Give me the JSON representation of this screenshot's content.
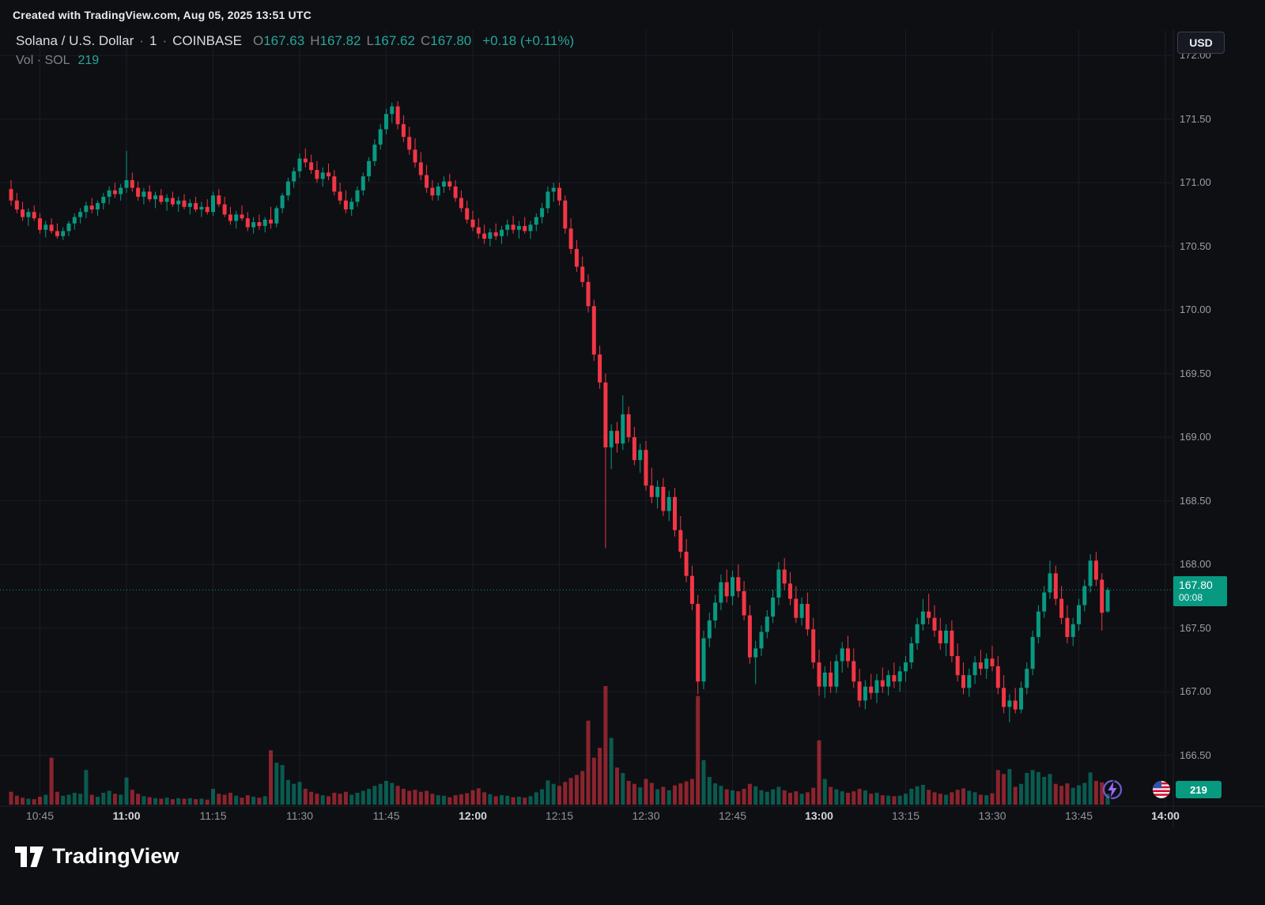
{
  "page": {
    "top_bar_text": "Created with TradingView.com, Aug 05, 2025 13:51 UTC"
  },
  "header": {
    "symbol_name": "Solana / U.S. Dollar",
    "separator": "·",
    "interval": "1",
    "exchange": "COINBASE",
    "ohlc": {
      "open_label": "O",
      "open": "167.63",
      "high_label": "H",
      "high": "167.82",
      "low_label": "L",
      "low": "167.62",
      "close_label": "C",
      "close": "167.80",
      "change": "+0.18 (+0.11%)"
    },
    "volume_row": {
      "label": "Vol · SOL",
      "value": "219"
    },
    "currency_button_label": "USD"
  },
  "badges": {
    "last_price": "167.80",
    "countdown": "00:08",
    "current_volume": "219"
  },
  "footer": {
    "logo_text": "TradingView"
  },
  "chart_data": {
    "type": "candlestick",
    "title": "Solana / U.S. Dollar, 1 minute, COINBASE",
    "interval_minutes": 1,
    "start_time": "10:40",
    "end_time": "13:50",
    "last_price": 167.8,
    "price_axis": {
      "min": 166.1,
      "max": 172.2,
      "tick_step": 0.5,
      "ticks": [
        172.0,
        171.5,
        171.0,
        170.5,
        170.0,
        169.5,
        169.0,
        168.5,
        168.0,
        167.5,
        167.0,
        166.5
      ]
    },
    "x_axis": {
      "ticks": [
        "10:45",
        "11:00",
        "11:15",
        "11:30",
        "11:45",
        "12:00",
        "12:15",
        "12:30",
        "12:45",
        "13:00",
        "13:15",
        "13:30",
        "13:45",
        "14:00"
      ],
      "bold_ticks": [
        "11:00",
        "12:00",
        "13:00",
        "14:00"
      ]
    },
    "volume": {
      "unit": "SOL",
      "current": 219,
      "max_scale": 2400
    },
    "colors": {
      "up": "#089981",
      "down": "#f23645",
      "grid": "#191d27",
      "last_price_line": "#089981",
      "axis_text": "#9a9ea8",
      "value_text": "#26a69a"
    },
    "candles_format": [
      "open",
      "high",
      "low",
      "close",
      "volume"
    ],
    "candles": [
      [
        170.95,
        171.02,
        170.82,
        170.86,
        260
      ],
      [
        170.86,
        170.92,
        170.76,
        170.79,
        180
      ],
      [
        170.79,
        170.85,
        170.7,
        170.73,
        140
      ],
      [
        170.73,
        170.8,
        170.66,
        170.77,
        120
      ],
      [
        170.77,
        170.82,
        170.7,
        170.72,
        110
      ],
      [
        170.72,
        170.76,
        170.6,
        170.63,
        160
      ],
      [
        170.63,
        170.7,
        170.57,
        170.67,
        200
      ],
      [
        170.67,
        170.72,
        170.6,
        170.62,
        950
      ],
      [
        170.62,
        170.68,
        170.56,
        170.58,
        260
      ],
      [
        170.58,
        170.65,
        170.55,
        170.62,
        180
      ],
      [
        170.62,
        170.7,
        170.58,
        170.68,
        200
      ],
      [
        170.68,
        170.76,
        170.63,
        170.73,
        240
      ],
      [
        170.73,
        170.8,
        170.68,
        170.77,
        220
      ],
      [
        170.77,
        170.85,
        170.72,
        170.82,
        700
      ],
      [
        170.82,
        170.88,
        170.76,
        170.79,
        200
      ],
      [
        170.79,
        170.86,
        170.74,
        170.84,
        160
      ],
      [
        170.84,
        170.92,
        170.79,
        170.89,
        240
      ],
      [
        170.89,
        170.97,
        170.83,
        170.94,
        280
      ],
      [
        170.94,
        171.0,
        170.88,
        170.91,
        220
      ],
      [
        170.91,
        170.99,
        170.86,
        170.96,
        200
      ],
      [
        170.96,
        171.25,
        170.92,
        171.02,
        550
      ],
      [
        171.02,
        171.08,
        170.93,
        170.96,
        300
      ],
      [
        170.96,
        171.01,
        170.86,
        170.89,
        220
      ],
      [
        170.89,
        170.96,
        170.83,
        170.93,
        170
      ],
      [
        170.93,
        170.98,
        170.85,
        170.87,
        150
      ],
      [
        170.87,
        170.93,
        170.8,
        170.9,
        130
      ],
      [
        170.9,
        170.95,
        170.83,
        170.85,
        120
      ],
      [
        170.85,
        170.91,
        170.78,
        170.88,
        140
      ],
      [
        170.88,
        170.93,
        170.81,
        170.83,
        110
      ],
      [
        170.83,
        170.89,
        170.77,
        170.86,
        130
      ],
      [
        170.86,
        170.91,
        170.79,
        170.81,
        120
      ],
      [
        170.81,
        170.87,
        170.75,
        170.84,
        130
      ],
      [
        170.84,
        170.89,
        170.77,
        170.79,
        110
      ],
      [
        170.79,
        170.85,
        170.73,
        170.81,
        120
      ],
      [
        170.81,
        170.87,
        170.75,
        170.77,
        100
      ],
      [
        170.77,
        170.93,
        170.74,
        170.9,
        320
      ],
      [
        170.9,
        170.95,
        170.81,
        170.83,
        220
      ],
      [
        170.83,
        170.89,
        170.73,
        170.75,
        200
      ],
      [
        170.75,
        170.81,
        170.67,
        170.7,
        240
      ],
      [
        170.7,
        170.78,
        170.64,
        170.75,
        180
      ],
      [
        170.75,
        170.82,
        170.7,
        170.72,
        140
      ],
      [
        170.72,
        170.77,
        170.62,
        170.65,
        190
      ],
      [
        170.65,
        170.73,
        170.6,
        170.69,
        160
      ],
      [
        170.69,
        170.75,
        170.63,
        170.66,
        140
      ],
      [
        170.66,
        170.73,
        170.61,
        170.71,
        170
      ],
      [
        170.71,
        170.81,
        170.64,
        170.68,
        1100
      ],
      [
        170.68,
        170.82,
        170.65,
        170.8,
        850
      ],
      [
        170.8,
        170.92,
        170.76,
        170.9,
        800
      ],
      [
        170.9,
        171.04,
        170.86,
        171.01,
        500
      ],
      [
        171.01,
        171.12,
        170.96,
        171.09,
        420
      ],
      [
        171.09,
        171.23,
        171.04,
        171.19,
        460
      ],
      [
        171.19,
        171.27,
        171.12,
        171.16,
        320
      ],
      [
        171.16,
        171.22,
        171.07,
        171.1,
        260
      ],
      [
        171.1,
        171.17,
        171.0,
        171.03,
        220
      ],
      [
        171.03,
        171.12,
        170.97,
        171.08,
        190
      ],
      [
        171.08,
        171.15,
        171.02,
        171.05,
        170
      ],
      [
        171.05,
        171.1,
        170.9,
        170.93,
        240
      ],
      [
        170.93,
        171.0,
        170.83,
        170.86,
        220
      ],
      [
        170.86,
        170.94,
        170.76,
        170.79,
        260
      ],
      [
        170.79,
        170.88,
        170.74,
        170.85,
        200
      ],
      [
        170.85,
        170.97,
        170.81,
        170.94,
        240
      ],
      [
        170.94,
        171.08,
        170.9,
        171.05,
        280
      ],
      [
        171.05,
        171.2,
        171.01,
        171.17,
        320
      ],
      [
        171.17,
        171.34,
        171.13,
        171.3,
        380
      ],
      [
        171.3,
        171.46,
        171.26,
        171.42,
        420
      ],
      [
        171.42,
        171.58,
        171.38,
        171.54,
        480
      ],
      [
        171.54,
        171.63,
        171.47,
        171.6,
        440
      ],
      [
        171.6,
        171.64,
        171.42,
        171.46,
        380
      ],
      [
        171.46,
        171.53,
        171.32,
        171.36,
        320
      ],
      [
        171.36,
        171.44,
        171.22,
        171.26,
        280
      ],
      [
        171.26,
        171.35,
        171.12,
        171.16,
        300
      ],
      [
        171.16,
        171.24,
        171.02,
        171.06,
        260
      ],
      [
        171.06,
        171.14,
        170.92,
        170.96,
        280
      ],
      [
        170.96,
        171.02,
        170.86,
        170.9,
        220
      ],
      [
        170.9,
        171.0,
        170.86,
        170.97,
        190
      ],
      [
        170.97,
        171.05,
        170.92,
        171.01,
        180
      ],
      [
        171.01,
        171.07,
        170.94,
        170.97,
        150
      ],
      [
        170.97,
        171.02,
        170.85,
        170.88,
        190
      ],
      [
        170.88,
        170.94,
        170.77,
        170.8,
        210
      ],
      [
        170.8,
        170.86,
        170.68,
        170.71,
        230
      ],
      [
        170.71,
        170.78,
        170.62,
        170.65,
        290
      ],
      [
        170.65,
        170.72,
        170.56,
        170.6,
        330
      ],
      [
        170.6,
        170.67,
        170.52,
        170.56,
        250
      ],
      [
        170.56,
        170.64,
        170.5,
        170.61,
        210
      ],
      [
        170.61,
        170.68,
        170.55,
        170.58,
        170
      ],
      [
        170.58,
        170.66,
        170.52,
        170.63,
        190
      ],
      [
        170.63,
        170.71,
        170.58,
        170.67,
        180
      ],
      [
        170.67,
        170.74,
        170.6,
        170.63,
        150
      ],
      [
        170.63,
        170.7,
        170.56,
        170.66,
        160
      ],
      [
        170.66,
        170.73,
        170.6,
        170.62,
        140
      ],
      [
        170.62,
        170.7,
        170.56,
        170.67,
        170
      ],
      [
        170.67,
        170.76,
        170.62,
        170.73,
        250
      ],
      [
        170.73,
        170.84,
        170.68,
        170.8,
        310
      ],
      [
        170.8,
        170.97,
        170.76,
        170.93,
        490
      ],
      [
        170.93,
        171.0,
        170.85,
        170.96,
        420
      ],
      [
        170.96,
        171.0,
        170.82,
        170.86,
        380
      ],
      [
        170.86,
        170.9,
        170.6,
        170.64,
        460
      ],
      [
        170.64,
        170.72,
        170.44,
        170.48,
        540
      ],
      [
        170.48,
        170.55,
        170.3,
        170.34,
        600
      ],
      [
        170.34,
        170.42,
        170.18,
        170.22,
        680
      ],
      [
        170.22,
        170.28,
        169.98,
        170.03,
        1700
      ],
      [
        170.03,
        170.08,
        169.6,
        169.65,
        950
      ],
      [
        169.65,
        169.72,
        169.38,
        169.43,
        1150
      ],
      [
        169.43,
        169.5,
        168.13,
        168.92,
        2400
      ],
      [
        168.92,
        169.1,
        168.75,
        169.05,
        1350
      ],
      [
        169.05,
        169.12,
        168.88,
        168.95,
        750
      ],
      [
        168.95,
        169.33,
        168.9,
        169.18,
        640
      ],
      [
        169.18,
        169.24,
        168.96,
        169.0,
        480
      ],
      [
        169.0,
        169.08,
        168.78,
        168.82,
        420
      ],
      [
        168.82,
        168.95,
        168.72,
        168.9,
        350
      ],
      [
        168.9,
        168.97,
        168.58,
        168.62,
        520
      ],
      [
        168.62,
        168.76,
        168.48,
        168.53,
        440
      ],
      [
        168.53,
        168.66,
        168.44,
        168.61,
        310
      ],
      [
        168.61,
        168.68,
        168.38,
        168.42,
        360
      ],
      [
        168.42,
        168.58,
        168.34,
        168.53,
        290
      ],
      [
        168.53,
        168.6,
        168.22,
        168.27,
        390
      ],
      [
        168.27,
        168.38,
        168.05,
        168.1,
        430
      ],
      [
        168.1,
        168.2,
        167.86,
        167.91,
        470
      ],
      [
        167.91,
        167.99,
        167.64,
        167.69,
        520
      ],
      [
        167.69,
        167.76,
        166.98,
        167.08,
        2200
      ],
      [
        167.08,
        167.48,
        167.02,
        167.42,
        900
      ],
      [
        167.42,
        167.62,
        167.35,
        167.56,
        560
      ],
      [
        167.56,
        167.76,
        167.5,
        167.7,
        430
      ],
      [
        167.7,
        167.92,
        167.64,
        167.86,
        380
      ],
      [
        167.86,
        167.96,
        167.7,
        167.75,
        310
      ],
      [
        167.75,
        167.95,
        167.68,
        167.9,
        290
      ],
      [
        167.9,
        168.0,
        167.74,
        167.79,
        270
      ],
      [
        167.79,
        167.87,
        167.56,
        167.6,
        320
      ],
      [
        167.6,
        167.68,
        167.22,
        167.27,
        420
      ],
      [
        167.27,
        167.4,
        167.06,
        167.34,
        370
      ],
      [
        167.34,
        167.52,
        167.28,
        167.47,
        290
      ],
      [
        167.47,
        167.64,
        167.42,
        167.59,
        260
      ],
      [
        167.59,
        167.8,
        167.54,
        167.74,
        310
      ],
      [
        167.74,
        168.02,
        167.68,
        167.96,
        360
      ],
      [
        167.96,
        168.05,
        167.8,
        167.85,
        290
      ],
      [
        167.85,
        167.94,
        167.68,
        167.73,
        240
      ],
      [
        167.73,
        167.83,
        167.54,
        167.58,
        270
      ],
      [
        167.58,
        167.74,
        167.52,
        167.69,
        220
      ],
      [
        167.69,
        167.78,
        167.44,
        167.49,
        250
      ],
      [
        167.49,
        167.58,
        167.18,
        167.23,
        340
      ],
      [
        167.23,
        167.33,
        166.97,
        167.04,
        1300
      ],
      [
        167.04,
        167.2,
        166.95,
        167.15,
        520
      ],
      [
        167.15,
        167.24,
        166.99,
        167.04,
        360
      ],
      [
        167.04,
        167.29,
        166.99,
        167.24,
        310
      ],
      [
        167.24,
        167.39,
        167.15,
        167.34,
        270
      ],
      [
        167.34,
        167.44,
        167.19,
        167.24,
        240
      ],
      [
        167.24,
        167.34,
        167.03,
        167.08,
        270
      ],
      [
        167.08,
        167.18,
        166.88,
        166.93,
        320
      ],
      [
        166.93,
        167.09,
        166.86,
        167.04,
        290
      ],
      [
        167.04,
        167.14,
        166.94,
        166.99,
        220
      ],
      [
        166.99,
        167.14,
        166.91,
        167.09,
        240
      ],
      [
        167.09,
        167.19,
        166.99,
        167.04,
        190
      ],
      [
        167.04,
        167.17,
        166.97,
        167.13,
        180
      ],
      [
        167.13,
        167.23,
        167.03,
        167.08,
        170
      ],
      [
        167.08,
        167.2,
        167.0,
        167.16,
        180
      ],
      [
        167.16,
        167.28,
        167.08,
        167.23,
        220
      ],
      [
        167.23,
        167.43,
        167.18,
        167.38,
        320
      ],
      [
        167.38,
        167.58,
        167.33,
        167.53,
        370
      ],
      [
        167.53,
        167.73,
        167.48,
        167.63,
        400
      ],
      [
        167.63,
        167.77,
        167.53,
        167.58,
        300
      ],
      [
        167.58,
        167.68,
        167.43,
        167.48,
        250
      ],
      [
        167.48,
        167.58,
        167.33,
        167.38,
        220
      ],
      [
        167.38,
        167.53,
        167.28,
        167.48,
        200
      ],
      [
        167.48,
        167.56,
        167.23,
        167.28,
        250
      ],
      [
        167.28,
        167.38,
        167.08,
        167.13,
        300
      ],
      [
        167.13,
        167.23,
        166.98,
        167.03,
        330
      ],
      [
        167.03,
        167.18,
        166.96,
        167.13,
        280
      ],
      [
        167.13,
        167.28,
        167.06,
        167.23,
        250
      ],
      [
        167.23,
        167.33,
        167.13,
        167.18,
        200
      ],
      [
        167.18,
        167.3,
        167.1,
        167.26,
        190
      ],
      [
        167.26,
        167.36,
        167.16,
        167.2,
        230
      ],
      [
        167.2,
        167.28,
        166.98,
        167.03,
        700
      ],
      [
        167.03,
        167.13,
        166.83,
        166.88,
        620
      ],
      [
        166.88,
        166.98,
        166.76,
        166.93,
        720
      ],
      [
        166.93,
        167.03,
        166.83,
        166.86,
        360
      ],
      [
        166.86,
        167.08,
        166.83,
        167.03,
        420
      ],
      [
        167.03,
        167.23,
        166.98,
        167.18,
        640
      ],
      [
        167.18,
        167.48,
        167.13,
        167.43,
        700
      ],
      [
        167.43,
        167.68,
        167.38,
        167.63,
        660
      ],
      [
        167.63,
        167.83,
        167.58,
        167.78,
        560
      ],
      [
        167.78,
        168.03,
        167.73,
        167.93,
        620
      ],
      [
        167.93,
        167.99,
        167.68,
        167.73,
        420
      ],
      [
        167.73,
        167.83,
        167.53,
        167.58,
        380
      ],
      [
        167.58,
        167.68,
        167.38,
        167.43,
        430
      ],
      [
        167.43,
        167.58,
        167.36,
        167.53,
        340
      ],
      [
        167.53,
        167.73,
        167.48,
        167.68,
        390
      ],
      [
        167.68,
        167.88,
        167.63,
        167.83,
        440
      ],
      [
        167.83,
        168.08,
        167.78,
        168.03,
        650
      ],
      [
        168.03,
        168.1,
        167.83,
        167.88,
        480
      ],
      [
        167.88,
        167.93,
        167.48,
        167.62,
        450
      ],
      [
        167.63,
        167.82,
        167.62,
        167.8,
        219
      ]
    ]
  }
}
